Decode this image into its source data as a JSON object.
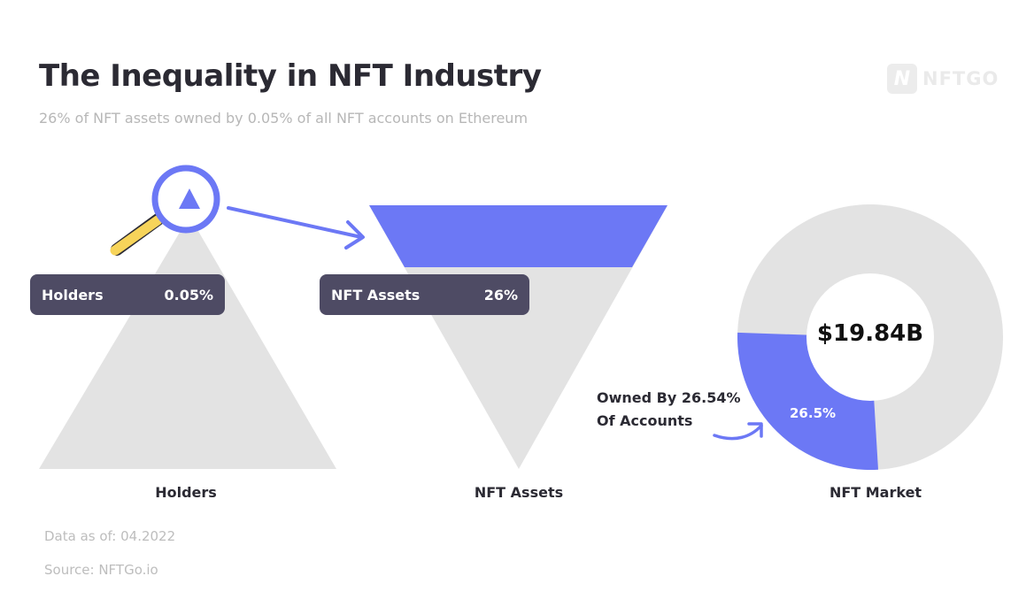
{
  "header": {
    "title": "The Inequality in NFT Industry",
    "subtitle": "26% of NFT assets owned by 0.05% of all NFT accounts on Ethereum",
    "logo_text": "NFTGO",
    "logo_mark": "N"
  },
  "colors": {
    "accent": "#6c78f5",
    "shape_gray": "#e3e3e3",
    "pill_bg": "#4e4b64",
    "magnifier_handle": "#f7d45a",
    "magnifier_ring": "#6c78f5"
  },
  "chart_data": [
    {
      "type": "pyramid",
      "caption": "Holders",
      "label": "Holders",
      "value_text": "0.05%",
      "highlight_share": 0.0005
    },
    {
      "type": "funnel",
      "caption": "NFT Assets",
      "label": "NFT Assets",
      "value_text": "26%",
      "highlight_share": 0.26
    },
    {
      "type": "pie",
      "caption": "NFT Market",
      "center_text": "$19.84B",
      "annotation": [
        "Owned By 26.54%",
        "Of Accounts"
      ],
      "slices": [
        {
          "label": "26.5%",
          "value": 26.5,
          "highlight": true
        },
        {
          "label": "",
          "value": 73.5,
          "highlight": false
        }
      ]
    }
  ],
  "footer": {
    "data_as_of": "Data as of: 04.2022",
    "source": "Source: NFTGo.io"
  }
}
